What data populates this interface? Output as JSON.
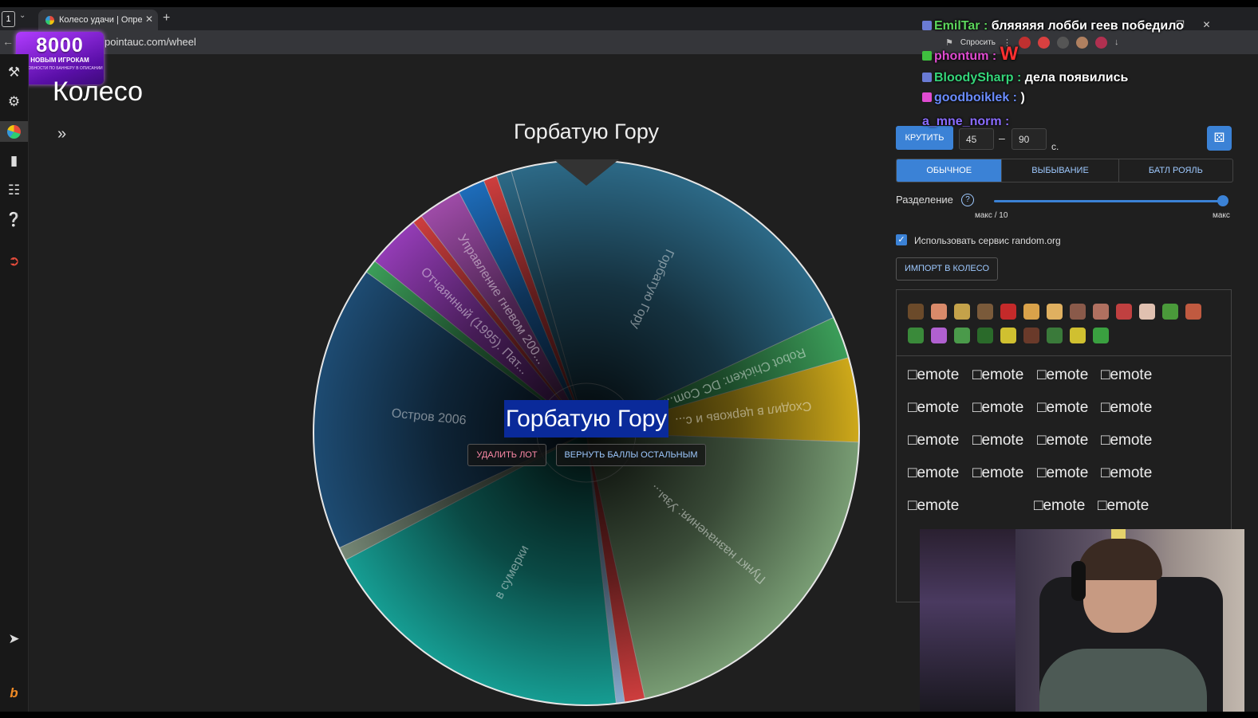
{
  "browser": {
    "tab_count": "1",
    "tab_title": "Колесо удачи | Опреде",
    "url": "pointauc.com/wheel",
    "ask_label": "Спросить"
  },
  "promo": {
    "big": "8000",
    "sub": "НОВЫМ ИГРОКАМ",
    "tiny": "ПОДРОБНОСТИ ПО БАННЕРУ В ОПИСАНИИ"
  },
  "page": {
    "title": "Колесо"
  },
  "wheel": {
    "winner": "Горбатую Гору",
    "winner_highlight": "Горбатую Гору",
    "delete_lot": "УДАЛИТЬ ЛОТ",
    "return_points": "ВЕРНУТЬ БАЛЛЫ ОСТАЛЬНЫМ"
  },
  "chart_data": {
    "type": "pie",
    "rotation_deg": -16,
    "series": [
      {
        "name": "Горбатую Гору",
        "value": 22.5,
        "color": "#2f6f8e"
      },
      {
        "name": "Robot Chicken: DC Com...",
        "value": 2.5,
        "color": "#3fa65e"
      },
      {
        "name": "Сходил в церковь и с...",
        "value": 5,
        "color": "#d9b21c"
      },
      {
        "name": "Пункт назначения: Узы...",
        "value": 21,
        "color": "#7fa57a"
      },
      {
        "name": "",
        "value": 1.2,
        "color": "#d94141"
      },
      {
        "name": "",
        "value": 0.5,
        "color": "#8fb3d9"
      },
      {
        "name": "в сумерки",
        "value": 19,
        "color": "#17a59a"
      },
      {
        "name": "",
        "value": 0.8,
        "color": "#7c8f7c"
      },
      {
        "name": "Остров 2006",
        "value": 17,
        "color": "#1f4f78"
      },
      {
        "name": "",
        "value": 0.8,
        "color": "#3fa65e"
      },
      {
        "name": "Отчаянный (1995). Пат...",
        "value": 3.2,
        "color": "#9b3fbf"
      },
      {
        "name": "",
        "value": 0.6,
        "color": "#d94141"
      },
      {
        "name": "Управление гневом 200...",
        "value": 2.6,
        "color": "#a64fb0"
      },
      {
        "name": "",
        "value": 1.6,
        "color": "#1f72c4"
      },
      {
        "name": "",
        "value": 0.8,
        "color": "#d94141"
      },
      {
        "name": "",
        "value": 0.9,
        "color": "#2f6f8e"
      }
    ]
  },
  "controls": {
    "spin": "КРУТИТЬ",
    "min": "45",
    "max": "90",
    "dash": "–",
    "sec": "с.",
    "random_icon": "dice-icon",
    "modes": [
      "ОБЫЧНОЕ",
      "ВЫБЫВАНИЕ",
      "БАТЛ РОЯЛЬ"
    ],
    "split_label": "Разделение",
    "help": "?",
    "split_value": 1.0,
    "slider_min": "макс / 10",
    "slider_max": "макс",
    "random_org": "Использовать сервис random.org",
    "import": "ИМПОРТ В КОЛЕСО"
  },
  "emotes": {
    "alt": "emote",
    "row1": [
      "#6b4a2a",
      "#d98a6a",
      "#c4a24a",
      "#7a5a3a",
      "#c42a2a",
      "#d9a24a",
      "#e0b060",
      "#8a5a4a",
      "#b07060",
      "#c04040",
      "#e0c0b0",
      "#4a9a3a",
      "#c05a40"
    ],
    "row2": [
      "#3a8a3a",
      "#b060d0",
      "#4a9a4a",
      "#2a6a2a",
      "#d0c030",
      "#6a3a2a",
      "#3a7a3a",
      "#d0c030",
      "#3aa040"
    ]
  },
  "chat": [
    {
      "user": "EmilTar",
      "sep": " : ",
      "msg": "бляяяяя лобби геев победило",
      "color": "#5cd65c",
      "badge": "#6a7bd4"
    },
    {
      "user": "phontum",
      "sep": " : ",
      "msg": "W",
      "color": "#e04cd1",
      "badge": "#3fbf3f",
      "msg_color": "#ff3030"
    },
    {
      "user": "BloodySharp",
      "sep": " : ",
      "msg": "дела появились",
      "color": "#35d67a",
      "badge": "#6a7bd4"
    },
    {
      "user": "goodboiklek",
      "sep": " : ",
      "msg": ")",
      "color": "#6a8cff",
      "badge": "#e04cd1"
    },
    {
      "user": "a_mne_norm",
      "sep": " : ",
      "msg": "",
      "color": "#8a6cff",
      "badge": ""
    }
  ]
}
